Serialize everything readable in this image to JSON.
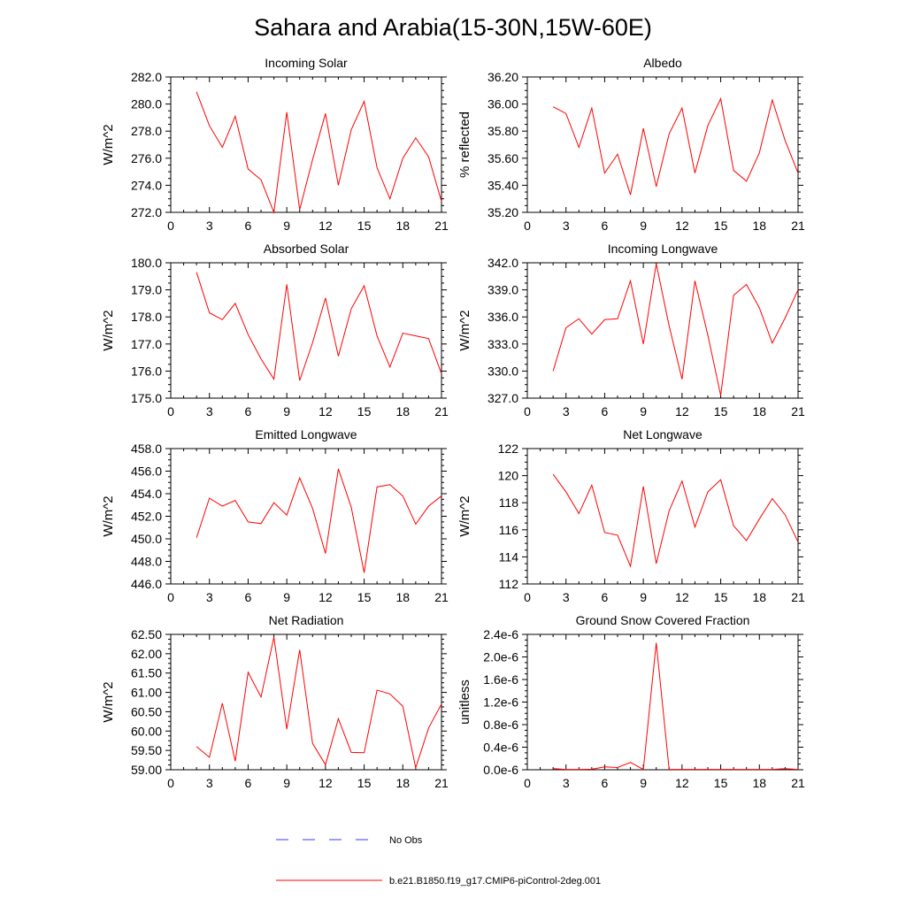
{
  "title": "Sahara and Arabia(15-30N,15W-60E)",
  "colors": {
    "model_line": "#ff0000",
    "obs_line": "#3a3aff",
    "axes": "#000000"
  },
  "legend": {
    "obs_label": "No Obs",
    "model_label": "b.e21.B1850.f19_g17.CMIP6-piControl-2deg.001"
  },
  "chart_data": [
    {
      "type": "line",
      "title": "Incoming Solar",
      "xlabel": "",
      "ylabel": "W/m^2",
      "xlim": [
        0,
        21
      ],
      "xticks": [
        0,
        3,
        6,
        9,
        12,
        15,
        18,
        21
      ],
      "ylim": [
        272,
        282
      ],
      "yticks": [
        272,
        274,
        276,
        278,
        280,
        282
      ],
      "ytick_labels": [
        "272.0",
        "274.0",
        "276.0",
        "278.0",
        "280.0",
        "282.0"
      ],
      "x": [
        2,
        3,
        4,
        5,
        6,
        7,
        8,
        9,
        10,
        11,
        12,
        13,
        14,
        15,
        16,
        17,
        18,
        19,
        20,
        21
      ],
      "series": [
        {
          "name": "b.e21.B1850.f19_g17.CMIP6-piControl-2deg.001",
          "values": [
            280.9,
            278.4,
            276.8,
            279.1,
            275.2,
            274.4,
            272.0,
            279.4,
            272.2,
            275.9,
            279.3,
            274.0,
            278.1,
            280.2,
            275.3,
            273.0,
            276.0,
            277.5,
            276.1,
            272.8
          ]
        }
      ]
    },
    {
      "type": "line",
      "title": "Albedo",
      "xlabel": "",
      "ylabel": "% reflected",
      "xlim": [
        0,
        21
      ],
      "xticks": [
        0,
        3,
        6,
        9,
        12,
        15,
        18,
        21
      ],
      "ylim": [
        35.2,
        36.2
      ],
      "yticks": [
        35.2,
        35.4,
        35.6,
        35.8,
        36.0,
        36.2
      ],
      "ytick_labels": [
        "35.20",
        "35.40",
        "35.60",
        "35.80",
        "36.00",
        "36.20"
      ],
      "x": [
        2,
        3,
        4,
        5,
        6,
        7,
        8,
        9,
        10,
        11,
        12,
        13,
        14,
        15,
        16,
        17,
        18,
        19,
        20,
        21
      ],
      "series": [
        {
          "name": "b.e21.B1850.f19_g17.CMIP6-piControl-2deg.001",
          "values": [
            35.98,
            35.93,
            35.68,
            35.97,
            35.49,
            35.63,
            35.33,
            35.82,
            35.39,
            35.78,
            35.97,
            35.49,
            35.84,
            36.04,
            35.51,
            35.43,
            35.64,
            36.03,
            35.73,
            35.49
          ]
        }
      ]
    },
    {
      "type": "line",
      "title": "Absorbed Solar",
      "xlabel": "",
      "ylabel": "W/m^2",
      "xlim": [
        0,
        21
      ],
      "xticks": [
        0,
        3,
        6,
        9,
        12,
        15,
        18,
        21
      ],
      "ylim": [
        175,
        180
      ],
      "yticks": [
        175,
        176,
        177,
        178,
        179,
        180
      ],
      "ytick_labels": [
        "175.0",
        "176.0",
        "177.0",
        "178.0",
        "179.0",
        "180.0"
      ],
      "x": [
        2,
        3,
        4,
        5,
        6,
        7,
        8,
        9,
        10,
        11,
        12,
        13,
        14,
        15,
        16,
        17,
        18,
        19,
        20,
        21
      ],
      "series": [
        {
          "name": "b.e21.B1850.f19_g17.CMIP6-piControl-2deg.001",
          "values": [
            179.65,
            178.15,
            177.9,
            178.5,
            177.35,
            176.45,
            175.7,
            179.2,
            175.65,
            177.05,
            178.7,
            176.55,
            178.3,
            179.15,
            177.3,
            176.15,
            177.4,
            177.3,
            177.2,
            175.9
          ]
        }
      ]
    },
    {
      "type": "line",
      "title": "Incoming Longwave",
      "xlabel": "",
      "ylabel": "W/m^2",
      "xlim": [
        0,
        21
      ],
      "xticks": [
        0,
        3,
        6,
        9,
        12,
        15,
        18,
        21
      ],
      "ylim": [
        327,
        342
      ],
      "yticks": [
        327,
        330,
        333,
        336,
        339,
        342
      ],
      "ytick_labels": [
        "327.0",
        "330.0",
        "333.0",
        "336.0",
        "339.0",
        "342.0"
      ],
      "x": [
        2,
        3,
        4,
        5,
        6,
        7,
        8,
        9,
        10,
        11,
        12,
        13,
        14,
        15,
        16,
        17,
        18,
        19,
        20,
        21
      ],
      "series": [
        {
          "name": "b.e21.B1850.f19_g17.CMIP6-piControl-2deg.001",
          "values": [
            330.0,
            334.8,
            335.8,
            334.1,
            335.7,
            335.8,
            340.0,
            333.0,
            341.9,
            335.0,
            329.1,
            340.0,
            334.0,
            327.3,
            338.4,
            339.6,
            337.0,
            333.1,
            335.9,
            339.0
          ]
        }
      ]
    },
    {
      "type": "line",
      "title": "Emitted Longwave",
      "xlabel": "",
      "ylabel": "W/m^2",
      "xlim": [
        0,
        21
      ],
      "xticks": [
        0,
        3,
        6,
        9,
        12,
        15,
        18,
        21
      ],
      "ylim": [
        446,
        458
      ],
      "yticks": [
        446,
        448,
        450,
        452,
        454,
        456,
        458
      ],
      "ytick_labels": [
        "446.0",
        "448.0",
        "450.0",
        "452.0",
        "454.0",
        "456.0",
        "458.0"
      ],
      "x": [
        2,
        3,
        4,
        5,
        6,
        7,
        8,
        9,
        10,
        11,
        12,
        13,
        14,
        15,
        16,
        17,
        18,
        19,
        20,
        21
      ],
      "series": [
        {
          "name": "b.e21.B1850.f19_g17.CMIP6-piControl-2deg.001",
          "values": [
            450.1,
            453.6,
            452.9,
            453.4,
            451.5,
            451.35,
            453.2,
            452.1,
            455.4,
            452.7,
            448.7,
            456.2,
            452.8,
            447.0,
            454.6,
            454.8,
            453.8,
            451.3,
            452.9,
            453.8
          ]
        }
      ]
    },
    {
      "type": "line",
      "title": "Net Longwave",
      "xlabel": "",
      "ylabel": "W/m^2",
      "xlim": [
        0,
        21
      ],
      "xticks": [
        0,
        3,
        6,
        9,
        12,
        15,
        18,
        21
      ],
      "ylim": [
        112,
        122
      ],
      "yticks": [
        112,
        114,
        116,
        118,
        120,
        122
      ],
      "ytick_labels": [
        "112",
        "114",
        "116",
        "118",
        "120",
        "122"
      ],
      "x": [
        2,
        3,
        4,
        5,
        6,
        7,
        8,
        9,
        10,
        11,
        12,
        13,
        14,
        15,
        16,
        17,
        18,
        19,
        20,
        21
      ],
      "series": [
        {
          "name": "b.e21.B1850.f19_g17.CMIP6-piControl-2deg.001",
          "values": [
            120.1,
            118.8,
            117.2,
            119.3,
            115.8,
            115.6,
            113.3,
            119.2,
            113.5,
            117.4,
            119.6,
            116.2,
            118.8,
            119.7,
            116.3,
            115.2,
            116.8,
            118.3,
            117.1,
            115.1
          ]
        }
      ]
    },
    {
      "type": "line",
      "title": "Net Radiation",
      "xlabel": "",
      "ylabel": "W/m^2",
      "xlim": [
        0,
        21
      ],
      "xticks": [
        0,
        3,
        6,
        9,
        12,
        15,
        18,
        21
      ],
      "ylim": [
        59,
        62.5
      ],
      "yticks": [
        59,
        59.5,
        60,
        60.5,
        61,
        61.5,
        62,
        62.5
      ],
      "ytick_labels": [
        "59.00",
        "59.50",
        "60.00",
        "60.50",
        "61.00",
        "61.50",
        "62.00",
        "62.50"
      ],
      "x": [
        2,
        3,
        4,
        5,
        6,
        7,
        8,
        9,
        10,
        11,
        12,
        13,
        14,
        15,
        16,
        17,
        18,
        19,
        20,
        21
      ],
      "series": [
        {
          "name": "b.e21.B1850.f19_g17.CMIP6-piControl-2deg.001",
          "values": [
            59.6,
            59.32,
            60.72,
            59.22,
            61.52,
            60.88,
            62.43,
            60.05,
            62.1,
            59.68,
            59.13,
            60.32,
            59.45,
            59.44,
            61.06,
            60.96,
            60.64,
            59.05,
            60.08,
            60.7
          ]
        }
      ]
    },
    {
      "type": "line",
      "title": "Ground Snow Covered Fraction",
      "xlabel": "",
      "ylabel": "unitless",
      "xlim": [
        0,
        21
      ],
      "xticks": [
        0,
        3,
        6,
        9,
        12,
        15,
        18,
        21
      ],
      "ylim": [
        0,
        2.4e-06
      ],
      "yticks": [
        0,
        4e-07,
        8e-07,
        1.2e-06,
        1.6e-06,
        2e-06,
        2.4e-06
      ],
      "ytick_labels": [
        "0.0e-6",
        "0.4e-6",
        "0.8e-6",
        "1.2e-6",
        "1.6e-6",
        "2.0e-6",
        "2.4e-6"
      ],
      "x": [
        2,
        3,
        4,
        5,
        6,
        7,
        8,
        9,
        10,
        11,
        12,
        13,
        14,
        15,
        16,
        17,
        18,
        19,
        20,
        21
      ],
      "series": [
        {
          "name": "b.e21.B1850.f19_g17.CMIP6-piControl-2deg.001",
          "values": [
            2e-08,
            5e-09,
            5e-09,
            1e-08,
            5e-08,
            4e-08,
            1.3e-07,
            5e-09,
            2.25e-06,
            5e-09,
            5e-09,
            5e-09,
            5e-09,
            5e-09,
            5e-09,
            5e-09,
            5e-09,
            5e-09,
            2e-08,
            5e-09
          ]
        }
      ]
    }
  ]
}
